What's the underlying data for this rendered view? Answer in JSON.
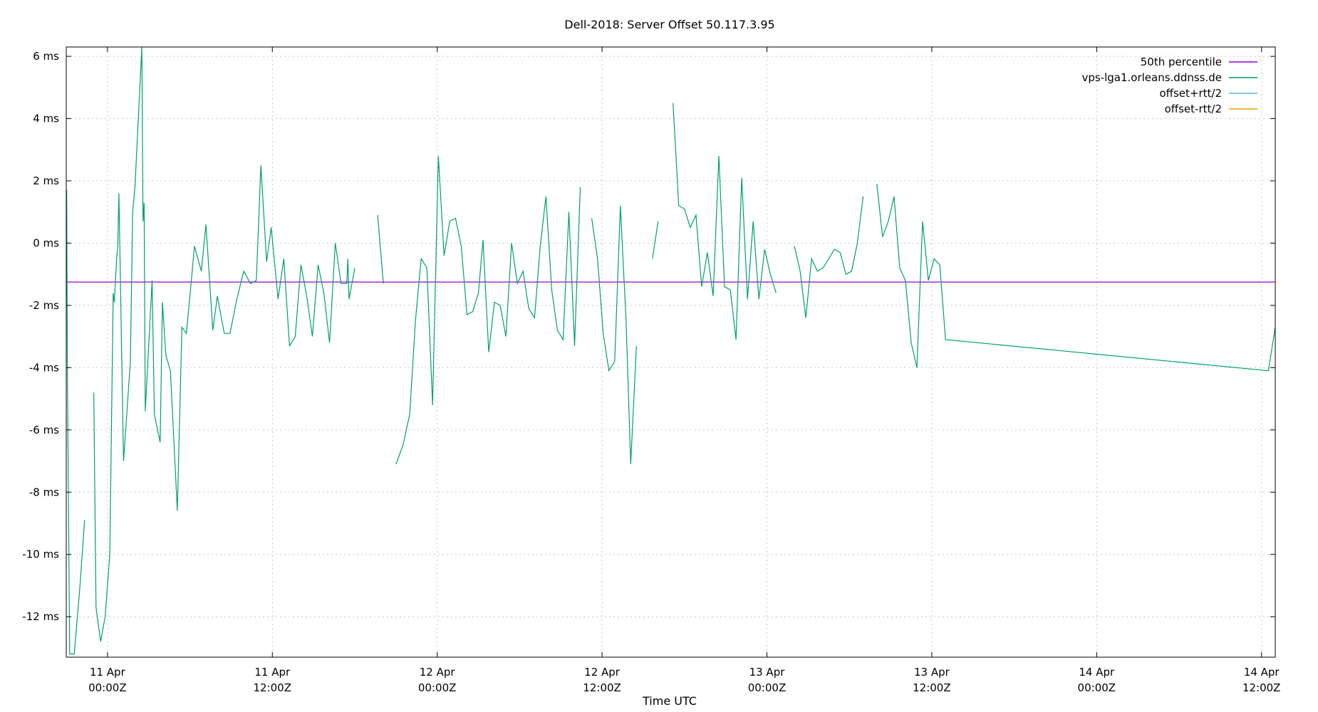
{
  "chart_data": {
    "type": "line",
    "title": "Dell-2018: Server Offset 50.117.3.95",
    "xlabel": "Time UTC",
    "ylabel": "",
    "ylim": [
      -13.3,
      6.3
    ],
    "xlim": [
      "2025-04-10T21:00Z",
      "2025-04-14T13:00Z"
    ],
    "y_ticks": [
      {
        "value": 6,
        "label": "6 ms"
      },
      {
        "value": 4,
        "label": "4 ms"
      },
      {
        "value": 2,
        "label": "2 ms"
      },
      {
        "value": 0,
        "label": "0 ms"
      },
      {
        "value": -2,
        "label": "-2 ms"
      },
      {
        "value": -4,
        "label": "-4 ms"
      },
      {
        "value": -6,
        "label": "-6 ms"
      },
      {
        "value": -8,
        "label": "-8 ms"
      },
      {
        "value": -10,
        "label": "-10 ms"
      },
      {
        "value": -12,
        "label": "-12 ms"
      }
    ],
    "x_ticks": [
      {
        "t": "2025-04-11T00:00Z",
        "line1": "11 Apr",
        "line2": "00:00Z"
      },
      {
        "t": "2025-04-11T12:00Z",
        "line1": "11 Apr",
        "line2": "12:00Z"
      },
      {
        "t": "2025-04-12T00:00Z",
        "line1": "12 Apr",
        "line2": "00:00Z"
      },
      {
        "t": "2025-04-12T12:00Z",
        "line1": "12 Apr",
        "line2": "12:00Z"
      },
      {
        "t": "2025-04-13T00:00Z",
        "line1": "13 Apr",
        "line2": "00:00Z"
      },
      {
        "t": "2025-04-13T12:00Z",
        "line1": "13 Apr",
        "line2": "12:00Z"
      },
      {
        "t": "2025-04-14T00:00Z",
        "line1": "14 Apr",
        "line2": "00:00Z"
      },
      {
        "t": "2025-04-14T12:00Z",
        "line1": "14 Apr",
        "line2": "12:00Z"
      }
    ],
    "grid": true,
    "legend_position": "top-right",
    "legend": [
      {
        "label": "50th percentile",
        "color": "#9400d3"
      },
      {
        "label": "vps-lga1.orleans.ddnss.de",
        "color": "#009e73"
      },
      {
        "label": "offset+rtt/2",
        "color": "#56b4e9"
      },
      {
        "label": "offset-rtt/2",
        "color": "#e69f00"
      }
    ],
    "percentile_50": -1.25,
    "series": [
      {
        "name": "vps-lga1.orleans.ddnss.de",
        "color": "#009e73",
        "segments": [
          [
            [
              "2025-04-10T21:02Z",
              1.7
            ],
            [
              "2025-04-10T21:05Z",
              -4.0
            ],
            [
              "2025-04-10T21:15Z",
              -13.2
            ],
            [
              "2025-04-10T21:35Z",
              -13.2
            ],
            [
              "2025-04-10T22:00Z",
              -11.0
            ],
            [
              "2025-04-10T22:20Z",
              -8.9
            ]
          ],
          [
            [
              "2025-04-10T23:00Z",
              -4.8
            ],
            [
              "2025-04-10T23:10Z",
              -11.7
            ],
            [
              "2025-04-10T23:30Z",
              -12.8
            ],
            [
              "2025-04-10T23:50Z",
              -12.0
            ],
            [
              "2025-04-11T00:10Z",
              -10.0
            ],
            [
              "2025-04-11T00:15Z",
              -7.2
            ],
            [
              "2025-04-11T00:25Z",
              -1.6
            ],
            [
              "2025-04-11T00:30Z",
              -1.9
            ],
            [
              "2025-04-11T00:40Z",
              -0.5
            ],
            [
              "2025-04-11T00:45Z",
              -0.1
            ],
            [
              "2025-04-11T00:50Z",
              1.6
            ],
            [
              "2025-04-11T01:10Z",
              -7.0
            ],
            [
              "2025-04-11T01:40Z",
              -3.8
            ],
            [
              "2025-04-11T01:50Z",
              1.0
            ],
            [
              "2025-04-11T02:00Z",
              1.8
            ],
            [
              "2025-04-11T02:30Z",
              6.3
            ],
            [
              "2025-04-11T02:35Z",
              0.7
            ],
            [
              "2025-04-11T02:40Z",
              1.3
            ],
            [
              "2025-04-11T02:45Z",
              -5.4
            ],
            [
              "2025-04-11T03:15Z",
              -1.2
            ],
            [
              "2025-04-11T03:25Z",
              -5.5
            ],
            [
              "2025-04-11T03:50Z",
              -6.4
            ],
            [
              "2025-04-11T04:00Z",
              -1.9
            ],
            [
              "2025-04-11T04:15Z",
              -3.6
            ],
            [
              "2025-04-11T04:35Z",
              -4.1
            ],
            [
              "2025-04-11T05:05Z",
              -8.6
            ],
            [
              "2025-04-11T05:25Z",
              -2.7
            ],
            [
              "2025-04-11T05:45Z",
              -2.9
            ],
            [
              "2025-04-11T06:20Z",
              -0.1
            ],
            [
              "2025-04-11T06:50Z",
              -0.9
            ],
            [
              "2025-04-11T07:10Z",
              0.6
            ],
            [
              "2025-04-11T07:40Z",
              -2.8
            ],
            [
              "2025-04-11T08:00Z",
              -1.7
            ],
            [
              "2025-04-11T08:30Z",
              -2.9
            ],
            [
              "2025-04-11T08:55Z",
              -2.9
            ],
            [
              "2025-04-11T09:25Z",
              -1.8
            ],
            [
              "2025-04-11T09:55Z",
              -0.9
            ],
            [
              "2025-04-11T10:25Z",
              -1.3
            ],
            [
              "2025-04-11T10:50Z",
              -1.2
            ],
            [
              "2025-04-11T11:10Z",
              2.5
            ],
            [
              "2025-04-11T11:35Z",
              -0.6
            ],
            [
              "2025-04-11T11:55Z",
              0.5
            ],
            [
              "2025-04-11T12:25Z",
              -1.8
            ],
            [
              "2025-04-11T12:50Z",
              -0.5
            ],
            [
              "2025-04-11T13:15Z",
              -3.3
            ],
            [
              "2025-04-11T13:40Z",
              -3.0
            ],
            [
              "2025-04-11T14:05Z",
              -0.7
            ],
            [
              "2025-04-11T14:30Z",
              -1.7
            ],
            [
              "2025-04-11T14:55Z",
              -3.0
            ],
            [
              "2025-04-11T15:20Z",
              -0.7
            ],
            [
              "2025-04-11T15:45Z",
              -1.6
            ],
            [
              "2025-04-11T16:10Z",
              -3.2
            ],
            [
              "2025-04-11T16:35Z",
              0.0
            ],
            [
              "2025-04-11T17:00Z",
              -1.3
            ],
            [
              "2025-04-11T17:25Z",
              -1.3
            ],
            [
              "2025-04-11T17:30Z",
              -0.5
            ],
            [
              "2025-04-11T17:35Z",
              -1.8
            ],
            [
              "2025-04-11T18:00Z",
              -0.8
            ]
          ],
          [
            [
              "2025-04-11T19:40Z",
              0.9
            ],
            [
              "2025-04-11T20:05Z",
              -1.3
            ]
          ],
          [
            [
              "2025-04-11T21:00Z",
              -7.1
            ],
            [
              "2025-04-11T21:30Z",
              -6.5
            ],
            [
              "2025-04-11T22:00Z",
              -5.5
            ],
            [
              "2025-04-11T22:25Z",
              -2.5
            ],
            [
              "2025-04-11T22:50Z",
              -0.5
            ],
            [
              "2025-04-11T23:15Z",
              -0.8
            ],
            [
              "2025-04-11T23:40Z",
              -5.2
            ],
            [
              "2025-04-12T00:05Z",
              2.8
            ],
            [
              "2025-04-12T00:30Z",
              -0.4
            ],
            [
              "2025-04-12T00:55Z",
              0.7
            ],
            [
              "2025-04-12T01:20Z",
              0.8
            ],
            [
              "2025-04-12T01:45Z",
              -0.1
            ],
            [
              "2025-04-12T02:10Z",
              -2.3
            ],
            [
              "2025-04-12T02:35Z",
              -2.2
            ],
            [
              "2025-04-12T03:00Z",
              -1.6
            ],
            [
              "2025-04-12T03:20Z",
              0.1
            ],
            [
              "2025-04-12T03:45Z",
              -3.5
            ],
            [
              "2025-04-12T04:10Z",
              -1.9
            ],
            [
              "2025-04-12T04:35Z",
              -2.0
            ],
            [
              "2025-04-12T05:00Z",
              -3.0
            ],
            [
              "2025-04-12T05:25Z",
              0.0
            ],
            [
              "2025-04-12T05:50Z",
              -1.3
            ],
            [
              "2025-04-12T06:15Z",
              -0.9
            ],
            [
              "2025-04-12T06:40Z",
              -2.1
            ],
            [
              "2025-04-12T07:05Z",
              -2.4
            ],
            [
              "2025-04-12T07:30Z",
              -0.1
            ],
            [
              "2025-04-12T07:55Z",
              1.5
            ],
            [
              "2025-04-12T08:20Z",
              -1.5
            ],
            [
              "2025-04-12T08:45Z",
              -2.8
            ],
            [
              "2025-04-12T09:10Z",
              -3.1
            ],
            [
              "2025-04-12T09:35Z",
              1.0
            ],
            [
              "2025-04-12T10:00Z",
              -3.3
            ],
            [
              "2025-04-12T10:25Z",
              1.8
            ]
          ],
          [
            [
              "2025-04-12T11:15Z",
              0.8
            ],
            [
              "2025-04-12T11:40Z",
              -0.5
            ],
            [
              "2025-04-12T12:05Z",
              -2.9
            ],
            [
              "2025-04-12T12:30Z",
              -4.1
            ],
            [
              "2025-04-12T12:55Z",
              -3.8
            ],
            [
              "2025-04-12T13:20Z",
              1.2
            ],
            [
              "2025-04-12T13:45Z",
              -2.5
            ],
            [
              "2025-04-12T14:05Z",
              -7.1
            ],
            [
              "2025-04-12T14:30Z",
              -3.3
            ]
          ],
          [
            [
              "2025-04-12T15:40Z",
              -0.5
            ],
            [
              "2025-04-12T16:05Z",
              0.7
            ]
          ],
          [
            [
              "2025-04-12T17:10Z",
              4.5
            ],
            [
              "2025-04-12T17:35Z",
              1.2
            ],
            [
              "2025-04-12T18:00Z",
              1.1
            ],
            [
              "2025-04-12T18:25Z",
              0.5
            ],
            [
              "2025-04-12T18:50Z",
              0.9
            ],
            [
              "2025-04-12T19:15Z",
              -1.4
            ],
            [
              "2025-04-12T19:40Z",
              -0.3
            ],
            [
              "2025-04-12T20:05Z",
              -1.7
            ],
            [
              "2025-04-12T20:30Z",
              2.8
            ],
            [
              "2025-04-12T20:55Z",
              -1.4
            ],
            [
              "2025-04-12T21:20Z",
              -1.5
            ],
            [
              "2025-04-12T21:45Z",
              -3.1
            ],
            [
              "2025-04-12T22:10Z",
              2.1
            ],
            [
              "2025-04-12T22:35Z",
              -1.8
            ],
            [
              "2025-04-12T23:00Z",
              0.7
            ],
            [
              "2025-04-12T23:25Z",
              -1.8
            ],
            [
              "2025-04-12T23:50Z",
              -0.2
            ],
            [
              "2025-04-13T00:15Z",
              -1.0
            ],
            [
              "2025-04-13T00:40Z",
              -1.6
            ]
          ],
          [
            [
              "2025-04-13T02:00Z",
              -0.1
            ],
            [
              "2025-04-13T02:25Z",
              -0.9
            ],
            [
              "2025-04-13T02:50Z",
              -2.4
            ],
            [
              "2025-04-13T03:15Z",
              -0.5
            ],
            [
              "2025-04-13T03:40Z",
              -0.9
            ],
            [
              "2025-04-13T04:05Z",
              -0.8
            ],
            [
              "2025-04-13T04:30Z",
              -0.5
            ],
            [
              "2025-04-13T04:55Z",
              -0.2
            ],
            [
              "2025-04-13T05:20Z",
              -0.3
            ],
            [
              "2025-04-13T05:45Z",
              -1.0
            ],
            [
              "2025-04-13T06:10Z",
              -0.9
            ],
            [
              "2025-04-13T06:35Z",
              0.0
            ],
            [
              "2025-04-13T07:00Z",
              1.5
            ]
          ],
          [
            [
              "2025-04-13T08:00Z",
              1.9
            ],
            [
              "2025-04-13T08:25Z",
              0.2
            ],
            [
              "2025-04-13T08:50Z",
              0.7
            ],
            [
              "2025-04-13T09:15Z",
              1.5
            ],
            [
              "2025-04-13T09:40Z",
              -0.8
            ],
            [
              "2025-04-13T10:05Z",
              -1.2
            ],
            [
              "2025-04-13T10:30Z",
              -3.2
            ],
            [
              "2025-04-13T10:55Z",
              -4.0
            ],
            [
              "2025-04-13T11:20Z",
              0.7
            ],
            [
              "2025-04-13T11:45Z",
              -1.2
            ],
            [
              "2025-04-13T12:10Z",
              -0.5
            ],
            [
              "2025-04-13T12:35Z",
              -0.7
            ],
            [
              "2025-04-13T13:00Z",
              -3.1
            ],
            [
              "2025-04-14T12:30Z",
              -4.1
            ],
            [
              "2025-04-14T13:00Z",
              -2.7
            ]
          ]
        ]
      }
    ]
  }
}
